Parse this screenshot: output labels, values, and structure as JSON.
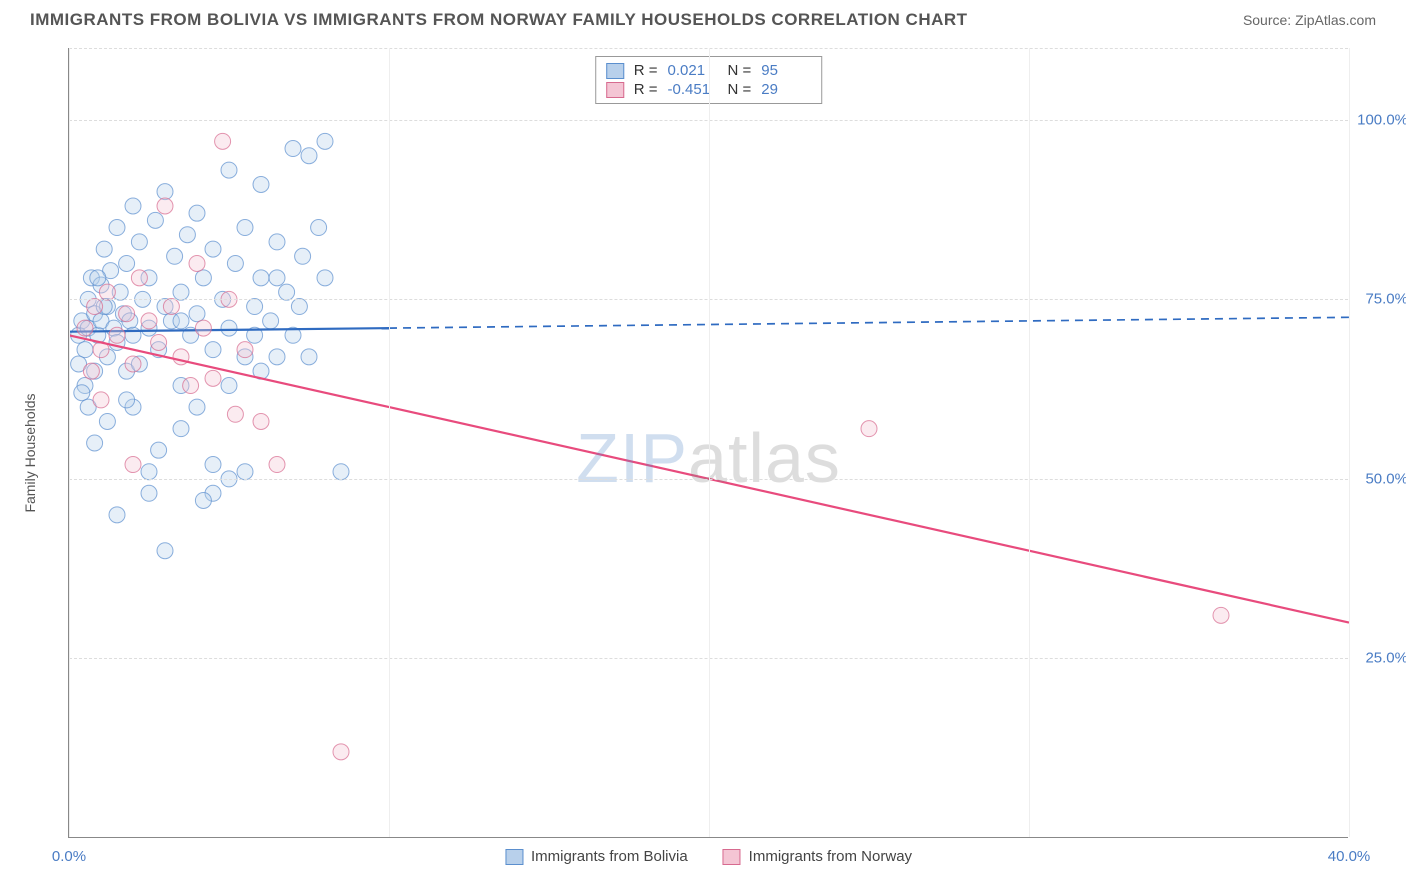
{
  "title": "IMMIGRANTS FROM BOLIVIA VS IMMIGRANTS FROM NORWAY FAMILY HOUSEHOLDS CORRELATION CHART",
  "source": "Source: ZipAtlas.com",
  "ylabel": "Family Households",
  "watermark_a": "ZIP",
  "watermark_b": "atlas",
  "chart": {
    "type": "scatter-correlation",
    "xlim": [
      0,
      40
    ],
    "ylim": [
      0,
      110
    ],
    "xtick_vals": [
      0,
      40
    ],
    "xtick_labels": [
      "0.0%",
      "40.0%"
    ],
    "ytick_vals": [
      25,
      50,
      75,
      100
    ],
    "ytick_labels": [
      "25.0%",
      "50.0%",
      "75.0%",
      "100.0%"
    ],
    "hgrid_vals": [
      25,
      50,
      75,
      100,
      110
    ],
    "vgrid_vals": [
      0,
      10,
      20,
      30,
      40
    ],
    "background_color": "#ffffff",
    "grid_color": "#dddddd",
    "marker_radius": 8,
    "marker_opacity": 0.35,
    "marker_stroke_opacity": 0.7,
    "line_width": 2.2,
    "series": [
      {
        "name": "Immigrants from Bolivia",
        "color": "#5b8fce",
        "fill": "#b8d0eb",
        "line_color": "#2f6bc1",
        "R": "0.021",
        "N": "95",
        "trend": {
          "x1": 0,
          "y1": 70.5,
          "x2": 40,
          "y2": 72.5,
          "solid_until_x": 10
        },
        "points": [
          [
            0.3,
            70
          ],
          [
            0.4,
            72
          ],
          [
            0.5,
            68
          ],
          [
            0.6,
            75
          ],
          [
            0.6,
            71
          ],
          [
            0.7,
            78
          ],
          [
            0.8,
            65
          ],
          [
            0.8,
            73
          ],
          [
            0.9,
            70
          ],
          [
            1.0,
            77
          ],
          [
            1.0,
            72
          ],
          [
            1.1,
            82
          ],
          [
            1.2,
            67
          ],
          [
            1.2,
            74
          ],
          [
            1.3,
            79
          ],
          [
            1.4,
            71
          ],
          [
            1.5,
            85
          ],
          [
            1.5,
            69
          ],
          [
            1.6,
            76
          ],
          [
            1.7,
            73
          ],
          [
            1.8,
            80
          ],
          [
            1.8,
            65
          ],
          [
            1.9,
            72
          ],
          [
            2.0,
            88
          ],
          [
            2.0,
            70
          ],
          [
            2.2,
            83
          ],
          [
            2.2,
            66
          ],
          [
            2.3,
            75
          ],
          [
            2.5,
            78
          ],
          [
            2.5,
            71
          ],
          [
            2.7,
            86
          ],
          [
            2.8,
            68
          ],
          [
            3.0,
            74
          ],
          [
            3.0,
            90
          ],
          [
            3.2,
            72
          ],
          [
            3.3,
            81
          ],
          [
            3.5,
            76
          ],
          [
            3.5,
            63
          ],
          [
            3.7,
            84
          ],
          [
            3.8,
            70
          ],
          [
            4.0,
            87
          ],
          [
            4.0,
            73
          ],
          [
            4.2,
            78
          ],
          [
            4.5,
            68
          ],
          [
            4.5,
            82
          ],
          [
            4.8,
            75
          ],
          [
            5.0,
            71
          ],
          [
            5.0,
            93
          ],
          [
            5.2,
            80
          ],
          [
            5.5,
            67
          ],
          [
            5.5,
            85
          ],
          [
            5.8,
            74
          ],
          [
            6.0,
            78
          ],
          [
            6.0,
            91
          ],
          [
            6.3,
            72
          ],
          [
            6.5,
            83
          ],
          [
            6.8,
            76
          ],
          [
            7.0,
            96
          ],
          [
            7.0,
            70
          ],
          [
            7.3,
            81
          ],
          [
            7.5,
            95
          ],
          [
            7.8,
            85
          ],
          [
            8.0,
            78
          ],
          [
            8.0,
            97
          ],
          [
            4.5,
            52
          ],
          [
            2.5,
            51
          ],
          [
            1.5,
            45
          ],
          [
            5.5,
            51
          ],
          [
            3.0,
            40
          ],
          [
            0.8,
            55
          ],
          [
            1.2,
            58
          ],
          [
            2.0,
            60
          ],
          [
            4.0,
            60
          ],
          [
            3.5,
            57
          ],
          [
            2.8,
            54
          ],
          [
            1.8,
            61
          ],
          [
            6.0,
            65
          ],
          [
            5.0,
            63
          ],
          [
            0.5,
            63
          ],
          [
            0.3,
            66
          ],
          [
            0.4,
            62
          ],
          [
            0.6,
            60
          ],
          [
            6.5,
            78
          ],
          [
            7.5,
            67
          ],
          [
            8.5,
            51
          ],
          [
            6.5,
            67
          ],
          [
            4.5,
            48
          ],
          [
            2.5,
            48
          ],
          [
            5.0,
            50
          ],
          [
            4.2,
            47
          ],
          [
            3.5,
            72
          ],
          [
            5.8,
            70
          ],
          [
            7.2,
            74
          ],
          [
            0.9,
            78
          ],
          [
            1.1,
            74
          ]
        ]
      },
      {
        "name": "Immigrants from Norway",
        "color": "#d76a8f",
        "fill": "#f4c5d4",
        "line_color": "#e84b7d",
        "R": "-0.451",
        "N": "29",
        "trend": {
          "x1": 0,
          "y1": 70,
          "x2": 40,
          "y2": 30,
          "solid_until_x": 40
        },
        "points": [
          [
            0.5,
            71
          ],
          [
            0.8,
            74
          ],
          [
            1.0,
            68
          ],
          [
            1.2,
            76
          ],
          [
            1.5,
            70
          ],
          [
            1.8,
            73
          ],
          [
            2.0,
            66
          ],
          [
            2.2,
            78
          ],
          [
            2.5,
            72
          ],
          [
            2.8,
            69
          ],
          [
            3.0,
            88
          ],
          [
            3.2,
            74
          ],
          [
            3.5,
            67
          ],
          [
            4.0,
            80
          ],
          [
            4.2,
            71
          ],
          [
            4.5,
            64
          ],
          [
            5.0,
            75
          ],
          [
            5.5,
            68
          ],
          [
            6.0,
            58
          ],
          [
            6.5,
            52
          ],
          [
            1.0,
            61
          ],
          [
            2.0,
            52
          ],
          [
            0.7,
            65
          ],
          [
            3.8,
            63
          ],
          [
            5.2,
            59
          ],
          [
            25,
            57
          ],
          [
            36,
            31
          ],
          [
            8.5,
            12
          ],
          [
            4.8,
            97
          ]
        ]
      }
    ]
  },
  "legend_bottom": [
    {
      "label": "Immigrants from Bolivia",
      "fill": "#b8d0eb",
      "stroke": "#5b8fce"
    },
    {
      "label": "Immigrants from Norway",
      "fill": "#f4c5d4",
      "stroke": "#d76a8f"
    }
  ]
}
